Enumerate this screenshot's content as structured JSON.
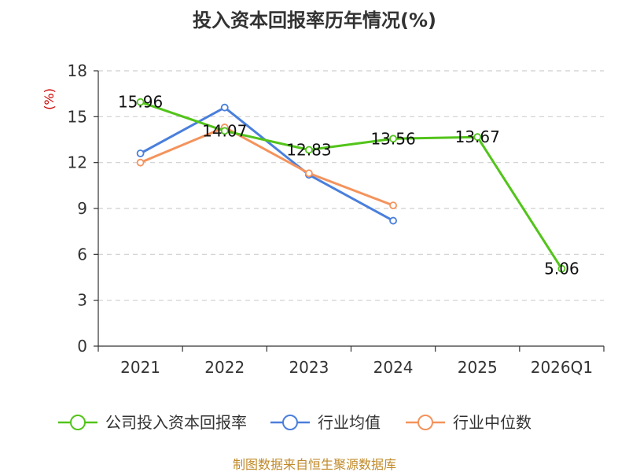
{
  "chart_data": {
    "type": "line",
    "title": "投入资本回报率历年情况(%)",
    "ylabel": "(%)",
    "xlabel": "",
    "categories": [
      "2021",
      "2022",
      "2023",
      "2024",
      "2025",
      "2026Q1"
    ],
    "ylim": [
      0,
      18
    ],
    "yticks": [
      0,
      3,
      6,
      9,
      12,
      15,
      18
    ],
    "grid": true,
    "legend_position": "bottom",
    "series": [
      {
        "name": "公司投入资本回报率",
        "color": "#52c41a",
        "values": [
          15.96,
          14.07,
          12.83,
          13.56,
          13.67,
          5.06
        ],
        "labels": true
      },
      {
        "name": "行业均值",
        "color": "#4a7fdc",
        "values": [
          12.6,
          15.6,
          11.2,
          8.2,
          null,
          null
        ],
        "labels": false
      },
      {
        "name": "行业中位数",
        "color": "#f4935c",
        "values": [
          12.0,
          14.3,
          11.3,
          9.2,
          null,
          null
        ],
        "labels": false
      }
    ]
  },
  "source": "制图数据来自恒生聚源数据库"
}
